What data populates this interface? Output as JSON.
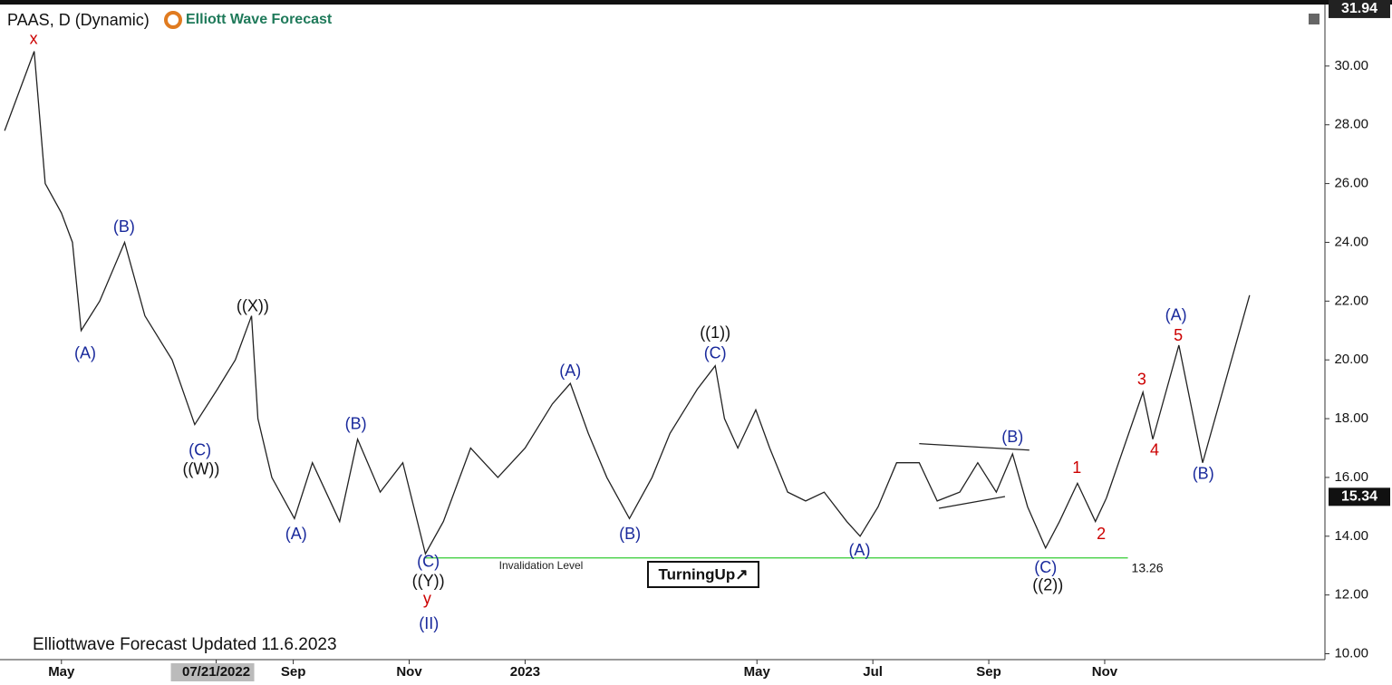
{
  "header": {
    "symbol": "PAAS, D (Dynamic)",
    "brand": "Elliott Wave Forecast"
  },
  "footer": {
    "note": "Elliottwave Forecast Updated 11.6.2023"
  },
  "badge": {
    "text": "TurningUp↗"
  },
  "chart_data": {
    "type": "line",
    "top_price": 31.94,
    "last_price": 15.34,
    "xlim": [
      -0.06,
      22.8
    ],
    "ylim": [
      9.8,
      32.0
    ],
    "xticks": [
      {
        "value": 1,
        "label": "May"
      },
      {
        "value": 3.67,
        "label": "07/21/2022"
      },
      {
        "value": 5,
        "label": "Sep"
      },
      {
        "value": 7,
        "label": "Nov"
      },
      {
        "value": 9,
        "label": "2023"
      },
      {
        "value": 13,
        "label": "May"
      },
      {
        "value": 15,
        "label": "Jul"
      },
      {
        "value": 17,
        "label": "Sep"
      },
      {
        "value": 19,
        "label": "Nov"
      }
    ],
    "yticks": [
      {
        "value": 10,
        "label": "10.00"
      },
      {
        "value": 12,
        "label": "12.00"
      },
      {
        "value": 14,
        "label": "14.00"
      },
      {
        "value": 16,
        "label": "16.00"
      },
      {
        "value": 18,
        "label": "18.00"
      },
      {
        "value": 20,
        "label": "20.00"
      },
      {
        "value": 22,
        "label": "22.00"
      },
      {
        "value": 24,
        "label": "24.00"
      },
      {
        "value": 26,
        "label": "26.00"
      },
      {
        "value": 28,
        "label": "28.00"
      },
      {
        "value": 30,
        "label": "30.00"
      }
    ],
    "series": [
      {
        "color": "#222222",
        "x": [
          0.02,
          0.53,
          0.72,
          1.0,
          1.19,
          1.34,
          1.66,
          2.09,
          2.44,
          2.91,
          3.3,
          3.69,
          4.0,
          4.28,
          4.39,
          4.63,
          5.02,
          5.33,
          5.8,
          6.11,
          6.5,
          6.89,
          7.28,
          7.59,
          8.06,
          8.53,
          9.0,
          9.47,
          9.78,
          10.09,
          10.41,
          10.8,
          11.19,
          11.5,
          11.97,
          12.28,
          12.44,
          12.67,
          12.98,
          13.22,
          13.53,
          13.84,
          14.16,
          14.55,
          14.78,
          15.09,
          15.41,
          15.8,
          16.11,
          16.5,
          16.81,
          17.13,
          17.41,
          17.67,
          17.98,
          18.22,
          18.53,
          18.84,
          19.03
        ],
        "values": [
          27.8,
          30.5,
          26,
          25,
          24,
          21,
          22,
          24,
          21.5,
          20,
          17.8,
          19,
          20,
          21.5,
          18,
          16,
          14.6,
          16.5,
          14.5,
          17.3,
          15.5,
          16.5,
          13.4,
          14.5,
          17,
          16,
          17,
          18.5,
          19.2,
          17.5,
          16,
          14.6,
          16,
          17.5,
          19,
          19.8,
          18,
          17,
          18.3,
          17,
          15.5,
          15.2,
          15.5,
          14.5,
          14,
          15,
          16.5,
          16.5,
          15.2,
          15.5,
          16.5,
          15.5,
          16.8,
          15,
          13.6,
          14.5,
          15.8,
          14.5,
          15.3
        ]
      },
      {
        "color": "#222222",
        "x": [
          19.03,
          19.66,
          19.83,
          20.28,
          20.69,
          21.5
        ],
        "values": [
          15.3,
          18.9,
          17.3,
          20.5,
          16.5,
          22.2
        ]
      }
    ],
    "trendlines": [
      {
        "x": [
          15.8,
          17.7
        ],
        "values": [
          17.15,
          16.93
        ]
      },
      {
        "x": [
          16.14,
          17.28
        ],
        "values": [
          14.95,
          15.35
        ]
      }
    ],
    "invalidation": {
      "label": "Invalidation Level",
      "value": 13.26,
      "x": [
        7.28,
        19.4
      ],
      "color": "#33cc33"
    },
    "annotations": [
      {
        "text": "x",
        "x": 0.52,
        "y": 30.9,
        "color": "#cc0000"
      },
      {
        "text": "(B)",
        "x": 2.08,
        "y": 24.5,
        "color": "#1a2a9c"
      },
      {
        "text": "(A)",
        "x": 1.41,
        "y": 20.2,
        "color": "#1a2a9c"
      },
      {
        "text": "((X))",
        "x": 4.3,
        "y": 21.8,
        "color": "#111111"
      },
      {
        "text": "(C)",
        "x": 3.39,
        "y": 16.9,
        "color": "#1a2a9c"
      },
      {
        "text": "((W))",
        "x": 3.41,
        "y": 16.25,
        "color": "#111111"
      },
      {
        "text": "(A)",
        "x": 5.05,
        "y": 14.05,
        "color": "#1a2a9c"
      },
      {
        "text": "(B)",
        "x": 6.08,
        "y": 17.8,
        "color": "#1a2a9c"
      },
      {
        "text": "(C)",
        "x": 7.33,
        "y": 13.1,
        "color": "#1a2a9c"
      },
      {
        "text": "((Y))",
        "x": 7.33,
        "y": 12.45,
        "color": "#111111"
      },
      {
        "text": "y",
        "x": 7.31,
        "y": 11.85,
        "color": "#cc0000"
      },
      {
        "text": "(II)",
        "x": 7.34,
        "y": 11.0,
        "color": "#1a2a9c"
      },
      {
        "text": "(A)",
        "x": 9.78,
        "y": 19.6,
        "color": "#1a2a9c"
      },
      {
        "text": "(B)",
        "x": 10.81,
        "y": 14.05,
        "color": "#1a2a9c"
      },
      {
        "text": "((1))",
        "x": 12.28,
        "y": 20.9,
        "color": "#111111"
      },
      {
        "text": "(C)",
        "x": 12.28,
        "y": 20.2,
        "color": "#1a2a9c"
      },
      {
        "text": "(A)",
        "x": 14.77,
        "y": 13.5,
        "color": "#1a2a9c"
      },
      {
        "text": "(B)",
        "x": 17.41,
        "y": 17.35,
        "color": "#1a2a9c"
      },
      {
        "text": "(C)",
        "x": 17.98,
        "y": 12.9,
        "color": "#1a2a9c"
      },
      {
        "text": "((2))",
        "x": 18.02,
        "y": 12.3,
        "color": "#111111"
      },
      {
        "text": "1",
        "x": 18.52,
        "y": 16.3,
        "color": "#cc0000"
      },
      {
        "text": "2",
        "x": 18.94,
        "y": 14.05,
        "color": "#cc0000"
      },
      {
        "text": "3",
        "x": 19.64,
        "y": 19.3,
        "color": "#cc0000"
      },
      {
        "text": "4",
        "x": 19.86,
        "y": 16.9,
        "color": "#cc0000"
      },
      {
        "text": "5",
        "x": 20.27,
        "y": 20.8,
        "color": "#cc0000"
      },
      {
        "text": "(A)",
        "x": 20.23,
        "y": 21.5,
        "color": "#1a2a9c"
      },
      {
        "text": "(B)",
        "x": 20.7,
        "y": 16.1,
        "color": "#1a2a9c"
      }
    ]
  }
}
